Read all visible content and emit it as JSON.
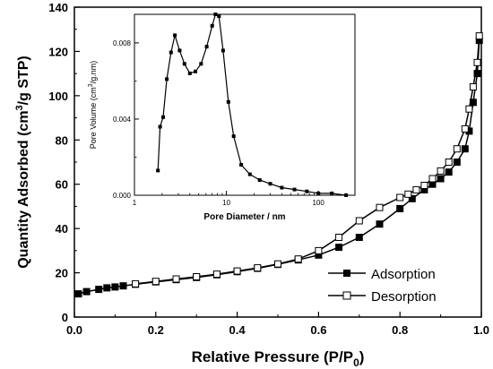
{
  "chart_data": [
    {
      "type": "line",
      "xlabel": "Relative Pressure (P/P",
      "xlabel_sub": "0",
      "xlabel_close": ")",
      "ylabel": "Quantity Adsorbed (cm",
      "ylabel_sup": "3",
      "ylabel_end": "/g STP)",
      "xlim": [
        0.0,
        1.0
      ],
      "ylim": [
        0,
        140
      ],
      "xticks": [
        0.0,
        0.2,
        0.4,
        0.6,
        0.8,
        1.0
      ],
      "xtick_labels": [
        "0.0",
        "0.2",
        "0.4",
        "0.6",
        "0.8",
        "1.0"
      ],
      "yticks": [
        0,
        20,
        40,
        60,
        80,
        100,
        120,
        140
      ],
      "ytick_labels": [
        "0",
        "20",
        "40",
        "60",
        "80",
        "100",
        "120",
        "140"
      ],
      "legend_position": "bottom-right",
      "series": [
        {
          "name": "Adsorption",
          "marker": "filled-square",
          "x": [
            0.01,
            0.03,
            0.06,
            0.08,
            0.1,
            0.12,
            0.15,
            0.2,
            0.25,
            0.3,
            0.35,
            0.4,
            0.45,
            0.5,
            0.55,
            0.6,
            0.65,
            0.7,
            0.75,
            0.8,
            0.83,
            0.86,
            0.88,
            0.9,
            0.92,
            0.94,
            0.96,
            0.97,
            0.98,
            0.99,
            0.995
          ],
          "y": [
            10.5,
            11.5,
            12.5,
            13.2,
            13.6,
            14.1,
            14.8,
            15.9,
            16.9,
            17.9,
            19.1,
            20.5,
            22.0,
            23.8,
            25.8,
            28.0,
            31.5,
            36.0,
            42.0,
            49.0,
            53.5,
            57.5,
            60.0,
            62.5,
            65.5,
            70.0,
            76.0,
            84.0,
            97.0,
            110.0,
            125.0
          ]
        },
        {
          "name": "Desorption",
          "marker": "open-square",
          "x": [
            0.995,
            0.99,
            0.98,
            0.97,
            0.96,
            0.94,
            0.92,
            0.9,
            0.88,
            0.86,
            0.84,
            0.82,
            0.8,
            0.75,
            0.7,
            0.65,
            0.6,
            0.55,
            0.5,
            0.45,
            0.4,
            0.35,
            0.3,
            0.25,
            0.2,
            0.15
          ],
          "y": [
            127.0,
            115.0,
            104.0,
            94.0,
            85.0,
            76.0,
            70.0,
            66.0,
            62.5,
            59.5,
            57.5,
            55.5,
            54.0,
            49.5,
            43.5,
            36.0,
            30.0,
            26.2,
            24.0,
            22.2,
            20.8,
            19.4,
            18.2,
            17.2,
            16.1,
            15.0
          ]
        }
      ]
    },
    {
      "type": "line",
      "xlabel": "Pore Diameter / nm",
      "ylabel": "Pore Volume (cm",
      "ylabel_sup": "3",
      "ylabel_end": "/g.nm)",
      "xscale": "log",
      "xlim": [
        1,
        250
      ],
      "ylim": [
        0,
        0.0095
      ],
      "xticks": [
        1,
        10,
        100
      ],
      "xtick_labels": [
        "1",
        "10",
        "100"
      ],
      "yticks": [
        0.0,
        0.004,
        0.008
      ],
      "ytick_labels": [
        "0.000",
        "0.004",
        "0.008"
      ],
      "series": [
        {
          "marker": "filled-square",
          "x": [
            1.8,
            1.9,
            2.05,
            2.25,
            2.5,
            2.75,
            3.1,
            3.5,
            4.0,
            4.6,
            5.3,
            6.1,
            7.0,
            7.6,
            8.3,
            9.2,
            10.5,
            12.0,
            14.5,
            18.0,
            23.0,
            30.0,
            40.0,
            55.0,
            75.0,
            100.0,
            140.0,
            200.0
          ],
          "y": [
            0.0013,
            0.0036,
            0.0041,
            0.0061,
            0.0075,
            0.0084,
            0.0076,
            0.0069,
            0.0064,
            0.0065,
            0.0069,
            0.0078,
            0.0089,
            0.0095,
            0.0094,
            0.0076,
            0.0049,
            0.0031,
            0.0016,
            0.0011,
            0.0008,
            0.0006,
            0.0004,
            0.0003,
            0.0002,
            0.0001,
            0.0001,
            0.0
          ]
        }
      ]
    }
  ]
}
